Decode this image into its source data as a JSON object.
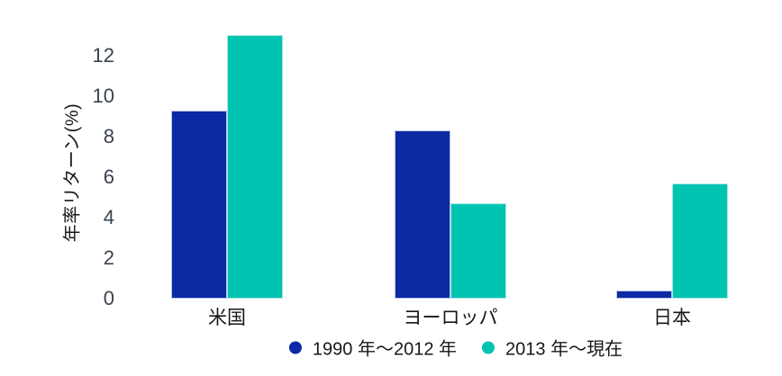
{
  "chart_data": {
    "type": "bar",
    "title": "",
    "ylabel": "年率リターン(%)",
    "xlabel": "",
    "categories": [
      "米国",
      "ヨーロッパ",
      "日本"
    ],
    "series": [
      {
        "name": "1990 年〜2012 年",
        "color": "#0b2aa4",
        "border_color": "#b9c2ea",
        "values": [
          9.3,
          8.3,
          0.4
        ]
      },
      {
        "name": "2013 年〜現在",
        "color": "#00c3b2",
        "border_color": "#a9e9e3",
        "values": [
          13.0,
          4.7,
          5.7
        ]
      }
    ],
    "yticks": [
      0,
      2,
      4,
      6,
      8,
      10,
      12
    ],
    "ylim": [
      0,
      13.3
    ],
    "grid": false,
    "legend_position": "bottom-center",
    "background": "#ffffff",
    "tick_color": "#39434d",
    "text_color": "#15181c"
  }
}
